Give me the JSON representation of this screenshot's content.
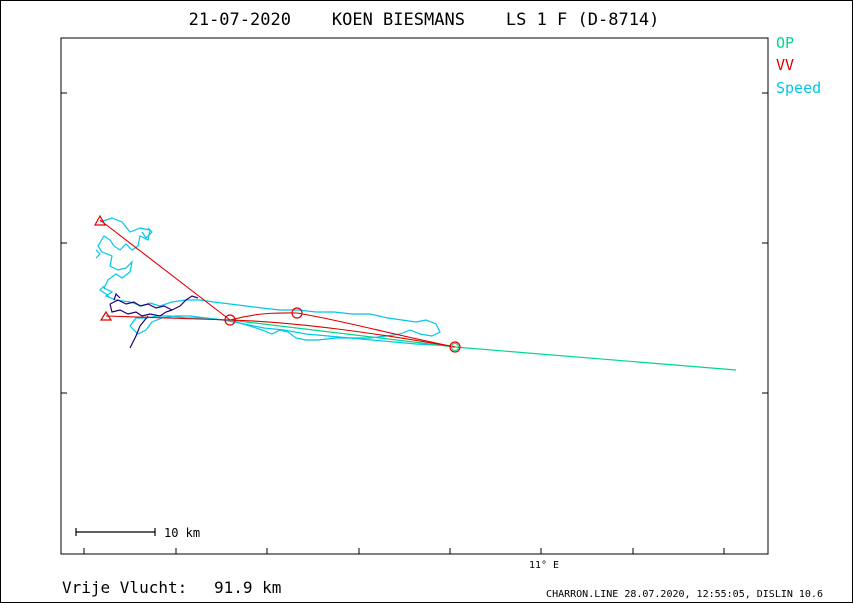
{
  "title": "21-07-2020    KOEN BIESMANS    LS 1 F (D-8714)",
  "legend": [
    {
      "label": "OP",
      "color": "#00d88a"
    },
    {
      "label": "VV",
      "color": "#e00000"
    },
    {
      "label": "Speed",
      "color": "#00c8e8"
    }
  ],
  "scale_label": "10 km",
  "x_tick_label": "11° E",
  "distance_label": "Vrije Vlucht:",
  "distance_value": "91.9 km",
  "footer": "CHARRON.LINE 28.07.2020, 12:55:05, DISLIN 10.6",
  "colors": {
    "track_fast": "#00c8e8",
    "track_slow": "#22007a",
    "vv": "#e00000",
    "op": "#00d88a"
  },
  "chart_data": {
    "type": "line",
    "title": "21-07-2020    KOEN BIESMANS    LS 1 F (D-8714)",
    "xlabel": "",
    "ylabel": "",
    "x_ticks": [
      "",
      "",
      "11° E",
      "",
      ""
    ],
    "grid": false,
    "legend_position": "top-right outside",
    "series": [
      {
        "name": "OP",
        "x": [
          10.02,
          10.95,
          11.53
        ],
        "y": [
          51.05,
          51.0,
          50.95
        ]
      },
      {
        "name": "VV",
        "x": [
          9.87,
          10.22,
          10.61,
          10.95,
          9.87
        ],
        "y": [
          51.18,
          51.05,
          51.06,
          51.0,
          51.05
        ]
      },
      {
        "name": "Speed",
        "x": [
          9.86,
          9.95,
          10.07,
          10.35,
          10.5,
          10.67,
          10.8,
          10.95
        ],
        "y": [
          51.1,
          51.08,
          51.06,
          51.05,
          51.04,
          51.03,
          51.03,
          51.0
        ]
      }
    ],
    "free_flight_km": 91.9
  }
}
